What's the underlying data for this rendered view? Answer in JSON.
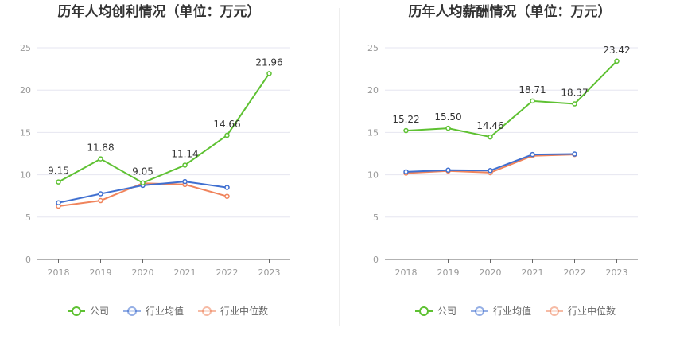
{
  "charts": [
    {
      "id": "left",
      "chart_data": {
        "type": "line",
        "title": "历年人均创利情况（单位：万元）",
        "categories": [
          "2018",
          "2019",
          "2020",
          "2021",
          "2022",
          "2023"
        ],
        "ylim": [
          0,
          25
        ],
        "yticks": [
          0,
          5,
          10,
          15,
          20,
          25
        ],
        "grid": true,
        "legend": "bottom-center",
        "series": [
          {
            "name": "公司",
            "color": "#5ec132",
            "values": [
              9.15,
              11.88,
              9.05,
              11.14,
              14.66,
              21.96
            ],
            "labels": [
              "9.15",
              "11.88",
              "9.05",
              "11.14",
              "14.66",
              "21.96"
            ]
          },
          {
            "name": "行业均值",
            "color": "#3f6fd0",
            "values": [
              6.7,
              7.75,
              8.75,
              9.2,
              8.5,
              null
            ]
          },
          {
            "name": "行业中位数",
            "color": "#f0845c",
            "values": [
              6.3,
              6.95,
              9.0,
              8.85,
              7.45,
              null
            ]
          }
        ]
      }
    },
    {
      "id": "right",
      "chart_data": {
        "type": "line",
        "title": "历年人均薪酬情况（单位：万元）",
        "categories": [
          "2018",
          "2019",
          "2020",
          "2021",
          "2022",
          "2023"
        ],
        "ylim": [
          0,
          25
        ],
        "yticks": [
          0,
          5,
          10,
          15,
          20,
          25
        ],
        "grid": true,
        "legend": "bottom-center",
        "series": [
          {
            "name": "公司",
            "color": "#5ec132",
            "values": [
              15.22,
              15.5,
              14.46,
              18.71,
              18.37,
              23.42
            ],
            "labels": [
              "15.22",
              "15.50",
              "14.46",
              "18.71",
              "18.37",
              "23.42"
            ]
          },
          {
            "name": "行业均值",
            "color": "#3f6fd0",
            "values": [
              10.35,
              10.55,
              10.5,
              12.4,
              12.45,
              null
            ]
          },
          {
            "name": "行业中位数",
            "color": "#f0845c",
            "values": [
              10.2,
              10.45,
              10.25,
              12.25,
              12.4,
              null
            ]
          }
        ]
      }
    }
  ]
}
